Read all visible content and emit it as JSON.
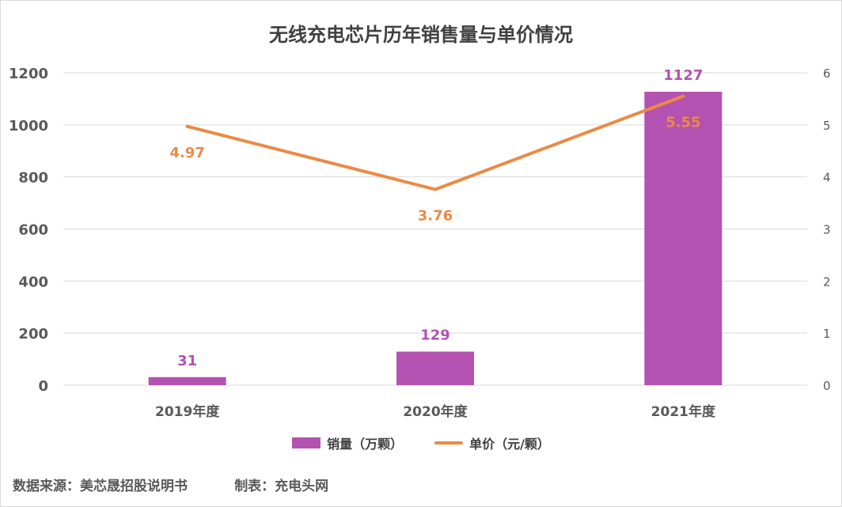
{
  "chart_data": {
    "type": "bar",
    "title": "无线充电芯片历年销售量与单价情况",
    "categories": [
      "2019年度",
      "2020年度",
      "2021年度"
    ],
    "series": [
      {
        "name": "销量（万颗）",
        "type": "bar",
        "axis": "left",
        "values": [
          31,
          129,
          1127
        ],
        "labels": [
          "31",
          "129",
          "1127"
        ]
      },
      {
        "name": "单价（元/颗）",
        "type": "line",
        "axis": "right",
        "values": [
          4.97,
          3.76,
          5.55
        ],
        "labels": [
          "4.97",
          "3.76",
          "5.55"
        ]
      }
    ],
    "y_left": {
      "min": 0,
      "max": 1200,
      "ticks": [
        "0",
        "200",
        "400",
        "600",
        "800",
        "1000",
        "1200"
      ]
    },
    "y_right": {
      "min": 0,
      "max": 6,
      "ticks": [
        "0",
        "1",
        "2",
        "3",
        "4",
        "5",
        "6"
      ]
    },
    "grid": true,
    "legend": "bottom",
    "colors": {
      "bar": "#b352b0",
      "line": "#eb8a45",
      "grid": "#d9d9d9",
      "axis_text": "#595959"
    }
  },
  "footer": {
    "source": "数据来源：美芯晟招股说明书",
    "maker": "制表：充电头网"
  }
}
